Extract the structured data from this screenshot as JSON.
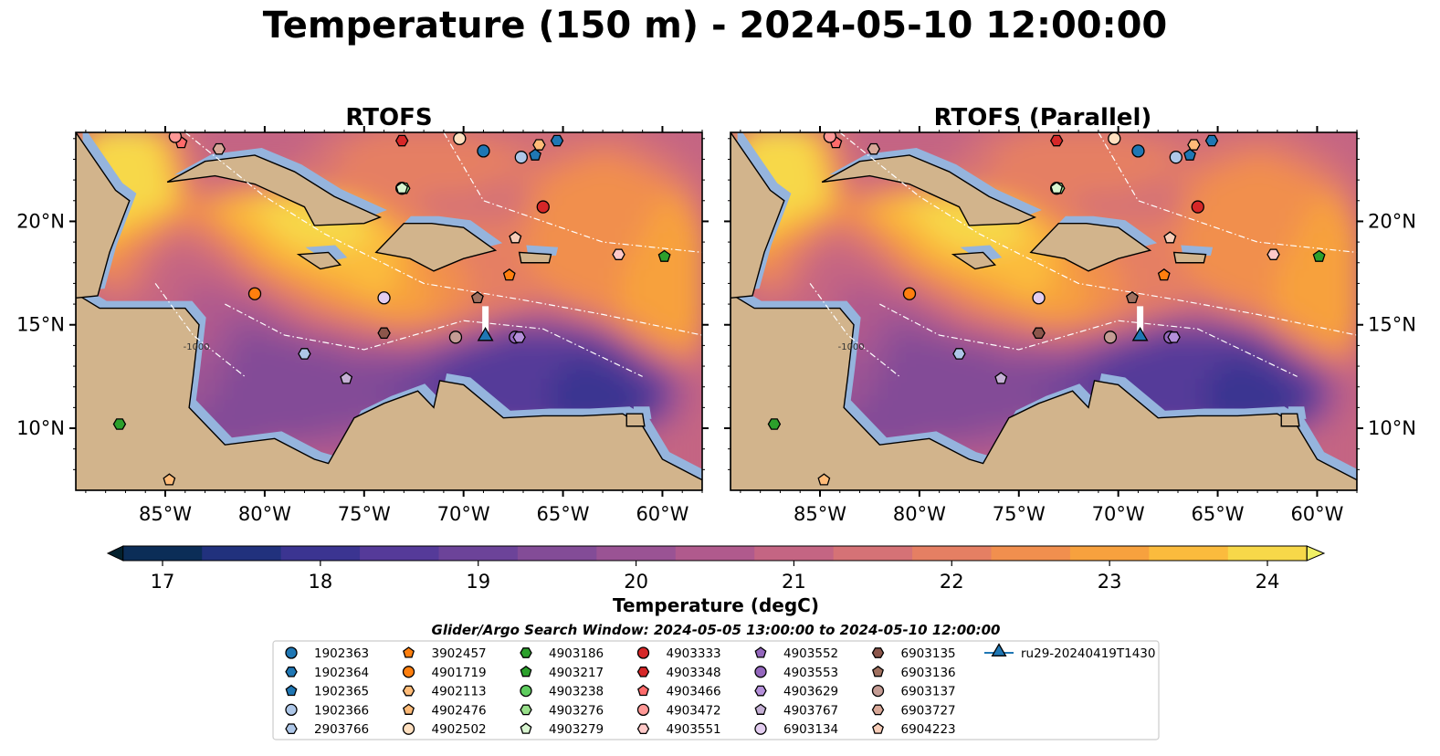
{
  "title": "Temperature (150 m) - 2024-05-10 12:00:00",
  "panels": [
    {
      "title": "RTOFS"
    },
    {
      "title": "RTOFS (Parallel)"
    }
  ],
  "lon_ticks": [
    "85°W",
    "80°W",
    "75°W",
    "70°W",
    "65°W",
    "60°W"
  ],
  "lat_ticks": [
    "20°N",
    "15°N",
    "10°N"
  ],
  "colorbar": {
    "label": "Temperature (degC)",
    "ticks": [
      "17",
      "18",
      "19",
      "20",
      "21",
      "22",
      "23",
      "24"
    ],
    "colors": [
      "#03212e",
      "#0b2d57",
      "#21317d",
      "#3b3491",
      "#553a99",
      "#6c4399",
      "#834c97",
      "#9a5394",
      "#b05a8d",
      "#c46583",
      "#d57276",
      "#e57f63",
      "#f18f4e",
      "#f7a13e",
      "#fbbb3d",
      "#f7d849",
      "#f0f065"
    ]
  },
  "search_window": "Glider/Argo Search Window: 2024-05-05 13:00:00 to 2024-05-10 12:00:00",
  "legend": [
    {
      "label": "1902363",
      "color": "#1f77b4",
      "marker": "circle"
    },
    {
      "label": "1902364",
      "color": "#1f77b4",
      "marker": "hexagon"
    },
    {
      "label": "1902365",
      "color": "#1f77b4",
      "marker": "pentagon"
    },
    {
      "label": "1902366",
      "color": "#aec7e8",
      "marker": "circle"
    },
    {
      "label": "2903766",
      "color": "#aec7e8",
      "marker": "hexagon"
    },
    {
      "label": "3902457",
      "color": "#ff7f0e",
      "marker": "pentagon"
    },
    {
      "label": "4901719",
      "color": "#ff7f0e",
      "marker": "circle"
    },
    {
      "label": "4902113",
      "color": "#ffbb78",
      "marker": "hexagon"
    },
    {
      "label": "4902476",
      "color": "#ffbb78",
      "marker": "pentagon"
    },
    {
      "label": "4902502",
      "color": "#ffe0c0",
      "marker": "circle"
    },
    {
      "label": "4903186",
      "color": "#2ca02c",
      "marker": "hexagon"
    },
    {
      "label": "4903217",
      "color": "#2ca02c",
      "marker": "pentagon"
    },
    {
      "label": "4903238",
      "color": "#5ecc5e",
      "marker": "circle"
    },
    {
      "label": "4903276",
      "color": "#98df8a",
      "marker": "hexagon"
    },
    {
      "label": "4903279",
      "color": "#d8f5d0",
      "marker": "pentagon"
    },
    {
      "label": "4903333",
      "color": "#d62728",
      "marker": "circle"
    },
    {
      "label": "4903348",
      "color": "#d62728",
      "marker": "hexagon"
    },
    {
      "label": "4903466",
      "color": "#ff6b6b",
      "marker": "pentagon"
    },
    {
      "label": "4903472",
      "color": "#ff9896",
      "marker": "circle"
    },
    {
      "label": "4903551",
      "color": "#ffc9c8",
      "marker": "hexagon"
    },
    {
      "label": "4903552",
      "color": "#9467bd",
      "marker": "pentagon"
    },
    {
      "label": "4903553",
      "color": "#9467bd",
      "marker": "circle"
    },
    {
      "label": "4903629",
      "color": "#b48fd9",
      "marker": "hexagon"
    },
    {
      "label": "4903767",
      "color": "#c5b0d5",
      "marker": "pentagon"
    },
    {
      "label": "6903134",
      "color": "#e3cdf0",
      "marker": "circle"
    },
    {
      "label": "6903135",
      "color": "#8c564b",
      "marker": "hexagon"
    },
    {
      "label": "6903136",
      "color": "#a0705f",
      "marker": "pentagon"
    },
    {
      "label": "6903137",
      "color": "#c49c94",
      "marker": "circle"
    },
    {
      "label": "6903727",
      "color": "#d8a898",
      "marker": "hexagon"
    },
    {
      "label": "6904223",
      "color": "#f7cdb8",
      "marker": "pentagon"
    },
    {
      "label": "ru29-20240419T1430",
      "color": "#1f77b4",
      "marker": "triangle-line"
    }
  ],
  "chart_data": {
    "type": "heatmap",
    "variable": "Temperature",
    "units": "degC",
    "depth_m": 150,
    "time": "2024-05-10 12:00:00",
    "lon_range": [
      -89.5,
      -58.0
    ],
    "lat_range": [
      7.0,
      24.3
    ],
    "color_range": [
      17,
      24
    ],
    "floats": [
      {
        "id": "1902363",
        "lon": -69.0,
        "lat": 23.4
      },
      {
        "id": "1902364",
        "lon": -65.3,
        "lat": 23.9
      },
      {
        "id": "1902365",
        "lon": -66.4,
        "lat": 23.2
      },
      {
        "id": "1902366",
        "lon": -67.1,
        "lat": 23.1
      },
      {
        "id": "2903766",
        "lon": -78.0,
        "lat": 13.6
      },
      {
        "id": "3902457",
        "lon": -67.7,
        "lat": 17.4
      },
      {
        "id": "4901719",
        "lon": -80.5,
        "lat": 16.5
      },
      {
        "id": "4902113",
        "lon": -66.2,
        "lat": 23.7
      },
      {
        "id": "4902476",
        "lon": -84.8,
        "lat": 7.5
      },
      {
        "id": "4902502",
        "lon": -70.2,
        "lat": 24.0
      },
      {
        "id": "4903186",
        "lon": -87.3,
        "lat": 10.2
      },
      {
        "id": "4903217",
        "lon": -59.9,
        "lat": 18.3
      },
      {
        "id": "4903238",
        "lon": -73.1,
        "lat": 21.6
      },
      {
        "id": "4903276",
        "lon": -73.0,
        "lat": 21.6
      },
      {
        "id": "4903279",
        "lon": -73.1,
        "lat": 21.6
      },
      {
        "id": "4903333",
        "lon": -66.0,
        "lat": 20.7
      },
      {
        "id": "4903348",
        "lon": -73.1,
        "lat": 23.9
      },
      {
        "id": "4903466",
        "lon": -84.2,
        "lat": 23.8
      },
      {
        "id": "4903472",
        "lon": -84.5,
        "lat": 24.1
      },
      {
        "id": "4903551",
        "lon": -62.2,
        "lat": 18.4
      },
      {
        "id": "4903552",
        "lon": -67.4,
        "lat": 19.2
      },
      {
        "id": "4903553",
        "lon": -67.4,
        "lat": 14.4
      },
      {
        "id": "4903629",
        "lon": -67.2,
        "lat": 14.4
      },
      {
        "id": "4903767",
        "lon": -75.9,
        "lat": 12.4
      },
      {
        "id": "6903134",
        "lon": -74.0,
        "lat": 16.3
      },
      {
        "id": "6903135",
        "lon": -74.0,
        "lat": 14.6
      },
      {
        "id": "6903136",
        "lon": -69.3,
        "lat": 16.3
      },
      {
        "id": "6903137",
        "lon": -70.4,
        "lat": 14.4
      },
      {
        "id": "6903727",
        "lon": -82.3,
        "lat": 23.5
      },
      {
        "id": "6904223",
        "lon": -67.4,
        "lat": 19.2
      }
    ],
    "glider": {
      "id": "ru29-20240419T1430",
      "lon": -68.9,
      "lat": 14.4,
      "track": [
        {
          "lon": -68.9,
          "lat": 15.9
        },
        {
          "lon": -68.9,
          "lat": 14.4
        }
      ]
    },
    "contour_labels": [
      "-1000"
    ]
  }
}
